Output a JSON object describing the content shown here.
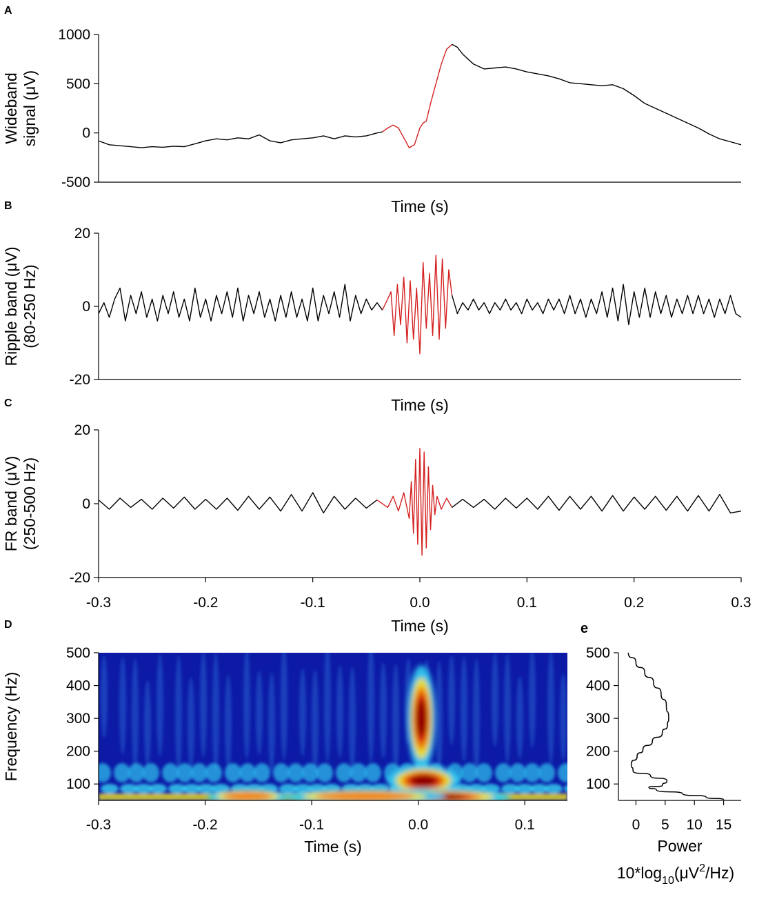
{
  "figure": {
    "panel_labels": {
      "a": "A",
      "b": "B",
      "c": "C",
      "d": "D",
      "e": "e"
    },
    "colors": {
      "trace": "#000000",
      "event_highlight": "#d42020",
      "colormap": "jet"
    }
  },
  "chart_data": [
    {
      "id": "A",
      "type": "line",
      "xlabel": "Time (s)",
      "ylabel": [
        "Wideband",
        "signal (μV)"
      ],
      "xlim": [
        -0.3,
        0.3
      ],
      "ylim": [
        -500,
        1000
      ],
      "yticks": [
        "1000",
        "500",
        "0",
        "-500"
      ],
      "ytick_values": [
        1000,
        500,
        0,
        -500
      ],
      "highlight_range": [
        -0.03,
        0.03
      ],
      "series": [
        {
          "x": [
            -0.3,
            -0.29,
            -0.28,
            -0.27,
            -0.26,
            -0.25,
            -0.24,
            -0.23,
            -0.22,
            -0.21,
            -0.2,
            -0.19,
            -0.18,
            -0.17,
            -0.16,
            -0.15,
            -0.14,
            -0.13,
            -0.12,
            -0.11,
            -0.1,
            -0.09,
            -0.08,
            -0.07,
            -0.06,
            -0.05,
            -0.04,
            -0.035,
            -0.03,
            -0.025,
            -0.02,
            -0.015,
            -0.01,
            -0.005,
            0.0,
            0.003,
            0.006,
            0.01,
            0.015,
            0.02,
            0.025,
            0.03,
            0.035,
            0.04,
            0.05,
            0.06,
            0.07,
            0.08,
            0.09,
            0.1,
            0.11,
            0.12,
            0.13,
            0.14,
            0.15,
            0.16,
            0.17,
            0.18,
            0.19,
            0.2,
            0.21,
            0.22,
            0.23,
            0.24,
            0.25,
            0.26,
            0.27,
            0.28,
            0.29,
            0.3
          ],
          "y": [
            -80,
            -120,
            -130,
            -140,
            -150,
            -140,
            -145,
            -135,
            -140,
            -110,
            -80,
            -60,
            -70,
            -50,
            -60,
            -20,
            -80,
            -100,
            -70,
            -60,
            -50,
            -30,
            -60,
            -30,
            -40,
            -30,
            0,
            10,
            50,
            80,
            50,
            -50,
            -150,
            -120,
            50,
            100,
            120,
            300,
            500,
            700,
            850,
            900,
            870,
            800,
            700,
            650,
            660,
            670,
            650,
            620,
            600,
            580,
            550,
            510,
            500,
            490,
            480,
            490,
            450,
            380,
            300,
            250,
            200,
            150,
            100,
            50,
            -10,
            -60,
            -90,
            -120
          ]
        }
      ]
    },
    {
      "id": "B",
      "type": "line",
      "xlabel": "Time (s)",
      "ylabel": [
        "Ripple band (μV)",
        "(80-250 Hz)"
      ],
      "xlim": [
        -0.3,
        0.3
      ],
      "ylim": [
        -20,
        20
      ],
      "yticks": [
        "20",
        "0",
        "-20"
      ],
      "ytick_values": [
        20,
        0,
        -20
      ],
      "highlight_range": [
        -0.03,
        0.03
      ],
      "series": [
        {
          "x": [
            -0.3,
            -0.295,
            -0.29,
            -0.285,
            -0.28,
            -0.275,
            -0.27,
            -0.265,
            -0.26,
            -0.255,
            -0.25,
            -0.245,
            -0.24,
            -0.235,
            -0.23,
            -0.225,
            -0.22,
            -0.215,
            -0.21,
            -0.205,
            -0.2,
            -0.195,
            -0.19,
            -0.185,
            -0.18,
            -0.175,
            -0.17,
            -0.165,
            -0.16,
            -0.155,
            -0.15,
            -0.145,
            -0.14,
            -0.135,
            -0.13,
            -0.125,
            -0.12,
            -0.115,
            -0.11,
            -0.105,
            -0.1,
            -0.095,
            -0.09,
            -0.085,
            -0.08,
            -0.075,
            -0.07,
            -0.065,
            -0.06,
            -0.055,
            -0.05,
            -0.045,
            -0.04,
            -0.035,
            -0.03,
            -0.027,
            -0.024,
            -0.021,
            -0.018,
            -0.015,
            -0.012,
            -0.009,
            -0.006,
            -0.003,
            0.0,
            0.003,
            0.006,
            0.009,
            0.012,
            0.015,
            0.018,
            0.021,
            0.024,
            0.027,
            0.03,
            0.035,
            0.04,
            0.045,
            0.05,
            0.055,
            0.06,
            0.065,
            0.07,
            0.075,
            0.08,
            0.085,
            0.09,
            0.095,
            0.1,
            0.105,
            0.11,
            0.115,
            0.12,
            0.125,
            0.13,
            0.135,
            0.14,
            0.145,
            0.15,
            0.155,
            0.16,
            0.165,
            0.17,
            0.175,
            0.18,
            0.185,
            0.19,
            0.195,
            0.2,
            0.205,
            0.21,
            0.215,
            0.22,
            0.225,
            0.23,
            0.235,
            0.24,
            0.245,
            0.25,
            0.255,
            0.26,
            0.265,
            0.27,
            0.275,
            0.28,
            0.285,
            0.29,
            0.295,
            0.3
          ],
          "y": [
            -2,
            1,
            -3,
            2,
            5,
            -4,
            3,
            -2,
            4,
            -3,
            2,
            -4,
            3,
            -2,
            4,
            -3,
            2,
            -4,
            5,
            -3,
            2,
            -4,
            3,
            -2,
            4,
            -3,
            5,
            -4,
            3,
            -2,
            4,
            -3,
            2,
            -4,
            3,
            -3,
            4,
            -3,
            2,
            -4,
            5,
            -4,
            3,
            -2,
            4,
            -3,
            6,
            -4,
            3,
            -2,
            2,
            -1,
            1,
            -1,
            2,
            4,
            -8,
            6,
            -5,
            8,
            -10,
            7,
            -9,
            5,
            -13,
            12,
            -6,
            9,
            -8,
            14,
            -9,
            13,
            -6,
            10,
            3,
            -2,
            1,
            -1,
            2,
            -1,
            1,
            -2,
            1,
            -1,
            2,
            -1,
            1,
            -2,
            2,
            -1,
            1,
            -2,
            2,
            -1,
            2,
            -2,
            3,
            -2,
            2,
            -3,
            2,
            -2,
            4,
            -3,
            5,
            -4,
            6,
            -5,
            4,
            -3,
            5,
            -3,
            4,
            -2,
            3,
            -3,
            2,
            -2,
            3,
            -2,
            3,
            -2,
            2,
            -3,
            2,
            -2,
            3,
            -2,
            -3
          ]
        }
      ]
    },
    {
      "id": "C",
      "type": "line",
      "xlabel": "Time (s)",
      "ylabel": [
        "FR band (μV)",
        "(250-500 Hz)"
      ],
      "xlim": [
        -0.3,
        0.3
      ],
      "ylim": [
        -20,
        20
      ],
      "yticks": [
        "20",
        "0",
        "-20"
      ],
      "ytick_values": [
        20,
        0,
        -20
      ],
      "xticks": [
        "-0.3",
        "-0.2",
        "-0.1",
        "0.0",
        "0.1",
        "0.2",
        "0.3"
      ],
      "xtick_values": [
        -0.3,
        -0.2,
        -0.1,
        0.0,
        0.1,
        0.2,
        0.3
      ],
      "highlight_range": [
        -0.03,
        0.03
      ],
      "series": [
        {
          "x": [
            -0.3,
            -0.29,
            -0.28,
            -0.27,
            -0.26,
            -0.25,
            -0.24,
            -0.23,
            -0.22,
            -0.21,
            -0.2,
            -0.19,
            -0.18,
            -0.17,
            -0.16,
            -0.15,
            -0.14,
            -0.13,
            -0.12,
            -0.11,
            -0.1,
            -0.09,
            -0.08,
            -0.07,
            -0.06,
            -0.05,
            -0.04,
            -0.03,
            -0.025,
            -0.02,
            -0.015,
            -0.01,
            -0.008,
            -0.006,
            -0.004,
            -0.002,
            0.0,
            0.002,
            0.004,
            0.006,
            0.008,
            0.01,
            0.012,
            0.014,
            0.016,
            0.02,
            0.025,
            0.03,
            0.04,
            0.05,
            0.06,
            0.07,
            0.08,
            0.09,
            0.1,
            0.11,
            0.12,
            0.13,
            0.14,
            0.15,
            0.16,
            0.17,
            0.18,
            0.19,
            0.2,
            0.21,
            0.22,
            0.23,
            0.24,
            0.25,
            0.26,
            0.27,
            0.28,
            0.29,
            0.3
          ],
          "y": [
            1,
            -1.5,
            1.5,
            -1,
            1.2,
            -1.5,
            1.5,
            -1.2,
            1.8,
            -1.5,
            1.2,
            -1.5,
            1.5,
            -1.8,
            2,
            -1.5,
            1.8,
            -2,
            2.5,
            -2,
            3,
            -2.5,
            2,
            -1.5,
            1.5,
            -1.2,
            1,
            -1,
            2,
            -2,
            3,
            -4,
            6,
            -8,
            12,
            -11,
            15,
            -14,
            14,
            -12,
            10,
            -7,
            5,
            -3,
            2,
            -1.5,
            1.5,
            -1,
            1.2,
            -1,
            1.2,
            -1.5,
            1.5,
            -1.2,
            1.5,
            -1.5,
            2,
            -1.8,
            2,
            -1.5,
            2,
            -2,
            2.2,
            -2,
            1.8,
            -1.5,
            2,
            -1.8,
            2,
            -2,
            2.2,
            -2,
            2.5,
            -2.5,
            -2
          ]
        }
      ]
    },
    {
      "id": "D",
      "type": "heatmap",
      "xlabel": "Time (s)",
      "ylabel": [
        "Frequency (Hz)"
      ],
      "xlim": [
        -0.3,
        0.14
      ],
      "ylim": [
        50,
        500
      ],
      "xticks": [
        "-0.3",
        "-0.2",
        "-0.1",
        "0.0",
        "0.1"
      ],
      "xtick_values": [
        -0.3,
        -0.2,
        -0.1,
        0.0,
        0.1
      ],
      "yticks": [
        "500",
        "400",
        "300",
        "200",
        "100"
      ],
      "ytick_values": [
        500,
        400,
        300,
        200,
        100
      ],
      "colormap": "jet",
      "hotspots": [
        {
          "t": 0.003,
          "f": 300,
          "dt": 0.007,
          "df": 85,
          "power": 1.0
        },
        {
          "t": 0.005,
          "f": 110,
          "dt": 0.018,
          "df": 25,
          "power": 0.85
        },
        {
          "t": 0.02,
          "f": 60,
          "dt": 0.035,
          "df": 14,
          "power": 1.0
        },
        {
          "t": -0.16,
          "f": 62,
          "dt": 0.02,
          "df": 12,
          "power": 0.7
        },
        {
          "t": -0.05,
          "f": 62,
          "dt": 0.04,
          "df": 12,
          "power": 0.65
        }
      ]
    },
    {
      "id": "e",
      "type": "line",
      "xlabel": "Power",
      "xlabel_units": {
        "prefix": "10*log",
        "sub": "10",
        "open": "(μV",
        "sup": "2",
        "close": "/Hz)"
      },
      "xlim": [
        -3,
        18
      ],
      "ylim": [
        50,
        500
      ],
      "xticks": [
        "0",
        "5",
        "10",
        "15"
      ],
      "xtick_values": [
        0,
        5,
        10,
        15
      ],
      "yticks": [
        "500",
        "400",
        "300",
        "200",
        "100"
      ],
      "ytick_values": [
        500,
        400,
        300,
        200,
        100
      ],
      "series": [
        {
          "x": [
            -1.3,
            0,
            1.5,
            3,
            4.3,
            5.2,
            5.6,
            5.4,
            4.5,
            2.8,
            1.2,
            0.2,
            -0.8,
            -0.5,
            2.5,
            5.3,
            4.5,
            2.2,
            3.5,
            8,
            12,
            15
          ],
          "y": [
            500,
            470,
            440,
            410,
            375,
            340,
            300,
            280,
            255,
            230,
            205,
            185,
            160,
            140,
            125,
            110,
            95,
            90,
            82,
            70,
            60,
            52
          ]
        }
      ]
    }
  ]
}
